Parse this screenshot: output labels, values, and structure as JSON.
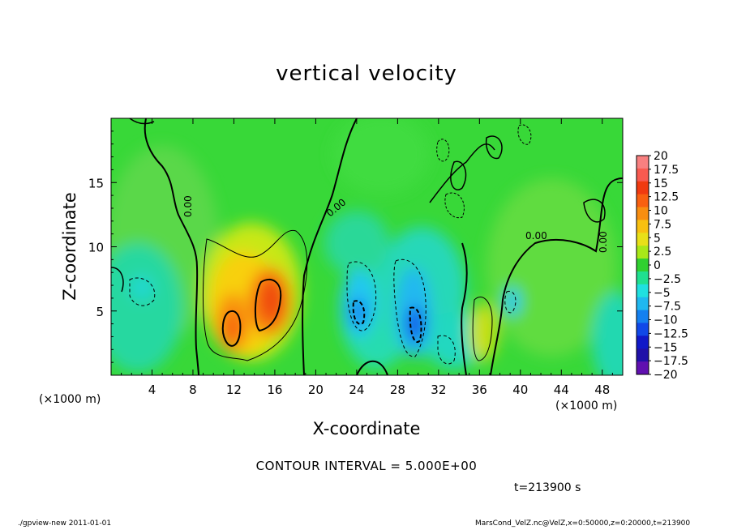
{
  "chart_data": {
    "type": "heatmap",
    "title": "vertical velocity",
    "xlabel": "X-coordinate",
    "ylabel": "Z-coordinate",
    "x_unit": "(×1000 m)",
    "y_unit": "(×1000 m)",
    "xlim": [
      0,
      50
    ],
    "ylim": [
      0,
      20
    ],
    "x_ticks": [
      4,
      8,
      12,
      16,
      20,
      24,
      28,
      32,
      36,
      40,
      44,
      48
    ],
    "y_ticks": [
      5,
      10,
      15
    ],
    "colorbar": {
      "labels": [
        "20",
        "17.5",
        "15",
        "12.5",
        "10",
        "7.5",
        "5",
        "2.5",
        "0",
        "−2.5",
        "−5",
        "−7.5",
        "−10",
        "−12.5",
        "−15",
        "−17.5",
        "−20"
      ],
      "colors": [
        "#f88080",
        "#f85a50",
        "#f03a10",
        "#f86010",
        "#f88e10",
        "#f8c010",
        "#e8e018",
        "#a8e818",
        "#30d030",
        "#20e090",
        "#20e0e0",
        "#20b8f0",
        "#1480f0",
        "#1048e8",
        "#1018c8",
        "#2010a8",
        "#6010b0"
      ]
    },
    "contour_interval": "CONTOUR INTERVAL = 5.000E+00",
    "contour_labels": [
      "0.00",
      "0.00",
      "0.00",
      "0.00"
    ],
    "features": [
      {
        "kind": "updraft",
        "x": 12,
        "z": 4,
        "value": 12
      },
      {
        "kind": "updraft",
        "x": 15.5,
        "z": 6,
        "value": 13
      },
      {
        "kind": "updraft",
        "x": 36.5,
        "z": 3.5,
        "value": 6
      },
      {
        "kind": "downdraft",
        "x": 24,
        "z": 5,
        "value": -9
      },
      {
        "kind": "downdraft",
        "x": 29.5,
        "z": 3.7,
        "value": -12
      },
      {
        "kind": "downdraft",
        "x": 39,
        "z": 5.5,
        "value": -6
      },
      {
        "kind": "downdraft",
        "x": 2,
        "z": 6.5,
        "value": -4
      },
      {
        "kind": "downdraft",
        "x": 33,
        "z": 2.5,
        "value": -4
      }
    ]
  },
  "time_label": "t=213900 s",
  "footer_left": "./gpview-new   2011-01-01",
  "footer_right": "MarsCond_VelZ.nc@VelZ,x=0:50000,z=0:20000,t=213900"
}
